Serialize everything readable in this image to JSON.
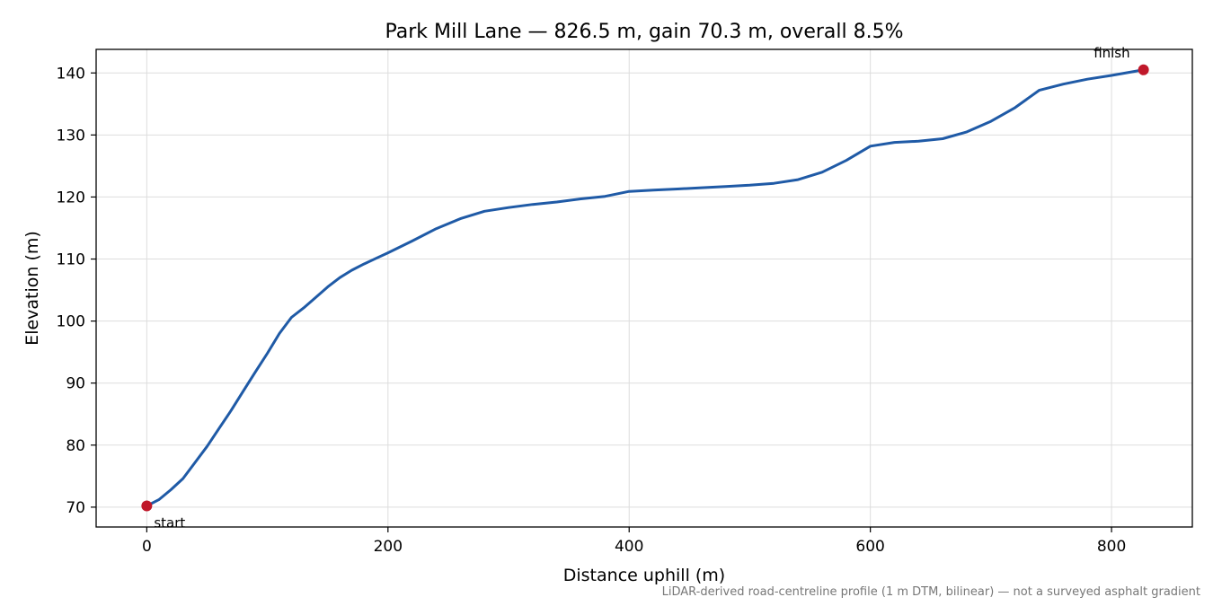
{
  "chart_data": {
    "type": "line",
    "title": "Park Mill Lane — 826.5 m, gain 70.3 m, overall 8.5%",
    "xlabel": "Distance uphill (m)",
    "ylabel": "Elevation (m)",
    "xlim": [
      -42,
      867
    ],
    "ylim": [
      66.8,
      143.8
    ],
    "xticks": [
      0,
      200,
      400,
      600,
      800
    ],
    "yticks": [
      70,
      80,
      90,
      100,
      110,
      120,
      130,
      140
    ],
    "grid": true,
    "line_color": "#1f5aa6",
    "marker_color": "#c0182a",
    "series": [
      {
        "x": [
          0,
          10,
          20,
          30,
          40,
          50,
          60,
          70,
          80,
          90,
          100,
          110,
          120,
          130,
          140,
          150,
          160,
          170,
          180,
          190,
          200,
          220,
          240,
          260,
          280,
          300,
          320,
          340,
          360,
          380,
          400,
          420,
          440,
          460,
          480,
          500,
          520,
          540,
          560,
          580,
          600,
          620,
          640,
          660,
          680,
          700,
          720,
          740,
          760,
          780,
          800,
          826.5
        ],
        "y": [
          70.2,
          71.2,
          72.8,
          74.6,
          77.2,
          79.8,
          82.7,
          85.6,
          88.7,
          91.8,
          94.8,
          98.0,
          100.6,
          102.1,
          103.8,
          105.5,
          107.0,
          108.2,
          109.2,
          110.1,
          111.0,
          112.9,
          114.9,
          116.5,
          117.7,
          118.3,
          118.8,
          119.2,
          119.7,
          120.1,
          120.9,
          121.1,
          121.3,
          121.5,
          121.7,
          121.9,
          122.2,
          122.8,
          124.0,
          125.9,
          128.2,
          128.8,
          129.0,
          129.4,
          130.5,
          132.2,
          134.4,
          137.2,
          138.2,
          139.0,
          139.6,
          140.5
        ]
      }
    ],
    "annotations": [
      {
        "text": "start",
        "x": 0,
        "y": 70.2
      },
      {
        "text": "finish",
        "x": 826.5,
        "y": 140.5
      }
    ],
    "footnote": "LiDAR-derived road-centreline profile (1 m DTM, bilinear) — not a surveyed asphalt gradient"
  }
}
